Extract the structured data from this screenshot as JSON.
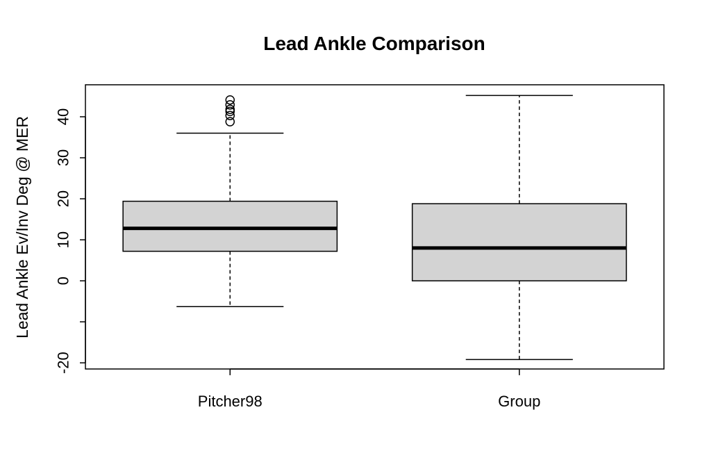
{
  "chart_data": {
    "type": "boxplot",
    "title": "Lead Ankle Comparison",
    "xlabel": "",
    "ylabel": "Lead Ankle Ev/Inv Deg @ MER",
    "ylim": [
      -21.5,
      47.8
    ],
    "y_ticks": [
      -20,
      -10,
      0,
      10,
      20,
      30,
      40
    ],
    "y_tick_labels": [
      "-20",
      "",
      "0",
      "10",
      "20",
      "30",
      "40"
    ],
    "categories": [
      "Pitcher98",
      "Group"
    ],
    "grid": false,
    "legend": "none",
    "box_fill": "#d3d3d3",
    "boxes": [
      {
        "name": "Pitcher98",
        "whisker_low": -6.3,
        "q1": 7.2,
        "median": 12.8,
        "q3": 19.4,
        "whisker_high": 36.0,
        "outliers": [
          38.8,
          40.3,
          41.3,
          41.8,
          42.9,
          44.1
        ]
      },
      {
        "name": "Group",
        "whisker_low": -19.2,
        "q1": 0.0,
        "median": 8.0,
        "q3": 18.8,
        "whisker_high": 45.2,
        "outliers": []
      }
    ]
  }
}
